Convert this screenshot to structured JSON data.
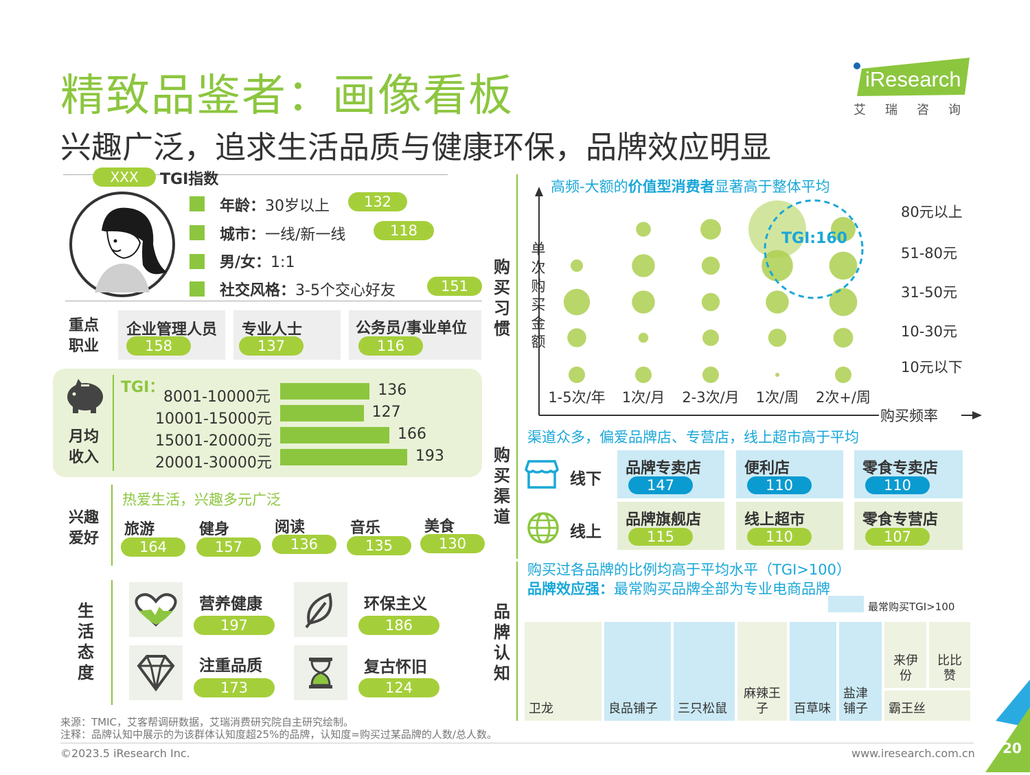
{
  "header": {
    "title": "精致品鉴者：画像看板",
    "subtitle": "兴趣广泛，追求生活品质与健康环保，品牌效应明显",
    "logo_brand": "iResearch",
    "logo_sub": "艾瑞咨询"
  },
  "profile": {
    "tag": "XXX",
    "tgi_label": "TGI指数",
    "items": [
      {
        "label": "年龄：",
        "value": "30岁以上",
        "tgi": "132"
      },
      {
        "label": "城市：",
        "value": "一线/新一线",
        "tgi": "118"
      },
      {
        "label": "男/女：",
        "value": "1:1",
        "tgi": ""
      },
      {
        "label": "社交风格：",
        "value": "3-5个交心好友",
        "tgi": "151"
      }
    ]
  },
  "occupation": {
    "label_l1": "重点",
    "label_l2": "职业",
    "items": [
      {
        "name": "企业管理人员",
        "tgi": "158"
      },
      {
        "name": "专业人士",
        "tgi": "137"
      },
      {
        "name": "公务员/事业单位",
        "tgi": "116"
      }
    ]
  },
  "income": {
    "label_l1": "月均",
    "label_l2": "收入",
    "tgi_label": "TGI：",
    "ranges": [
      "8001-10000元",
      "10001-15000元",
      "15001-20000元",
      "20001-30000元"
    ],
    "values": [
      136,
      127,
      166,
      193
    ]
  },
  "hobbies": {
    "label_l1": "兴趣",
    "label_l2": "爱好",
    "headline": "热爱生活，兴趣多元广泛",
    "items": [
      {
        "name": "旅游",
        "tgi": "164"
      },
      {
        "name": "健身",
        "tgi": "157"
      },
      {
        "name": "阅读",
        "tgi": "136"
      },
      {
        "name": "音乐",
        "tgi": "135"
      },
      {
        "name": "美食",
        "tgi": "130"
      }
    ]
  },
  "attitude": {
    "label": [
      "生",
      "活",
      "态",
      "度"
    ],
    "items": [
      {
        "name": "营养健康",
        "tgi": "197",
        "icon": "heart-pulse-icon"
      },
      {
        "name": "环保主义",
        "tgi": "186",
        "icon": "leaf-icon"
      },
      {
        "name": "注重品质",
        "tgi": "173",
        "icon": "diamond-icon"
      },
      {
        "name": "复古怀旧",
        "tgi": "124",
        "icon": "hourglass-icon"
      }
    ]
  },
  "purchase_habit": {
    "section_label": [
      "购",
      "买",
      "习",
      "惯"
    ],
    "headline_pre": "高频-大额的",
    "headline_bold": "价值型消费者",
    "headline_post": "显著高于整体平均",
    "y_axis_label": [
      "单",
      "次",
      "购",
      "买",
      "金",
      "额"
    ],
    "x_axis_label": "购买频率",
    "highlight": "TGI:160"
  },
  "chart_data": {
    "type": "scatter",
    "title": "高频-大额的价值型消费者显著高于整体平均",
    "xlabel": "购买频率",
    "ylabel": "单次购买金额",
    "x_categories": [
      "1-5次/年",
      "1次/月",
      "2-3次/月",
      "1次/周",
      "2次+/周"
    ],
    "y_categories": [
      "10元以下",
      "10-30元",
      "31-50元",
      "51-80元",
      "80元以上"
    ],
    "points": [
      {
        "x": 0,
        "y": 0,
        "size": 2
      },
      {
        "x": 1,
        "y": 0,
        "size": 2
      },
      {
        "x": 2,
        "y": 0,
        "size": 2
      },
      {
        "x": 3,
        "y": 0,
        "size": 0.5
      },
      {
        "x": 4,
        "y": 0,
        "size": 2
      },
      {
        "x": 0,
        "y": 1,
        "size": 2.3
      },
      {
        "x": 1,
        "y": 1,
        "size": 1.2
      },
      {
        "x": 2,
        "y": 1,
        "size": 2
      },
      {
        "x": 3,
        "y": 1,
        "size": 2.2
      },
      {
        "x": 4,
        "y": 1,
        "size": 2.4
      },
      {
        "x": 0,
        "y": 2,
        "size": 3.2
      },
      {
        "x": 1,
        "y": 2,
        "size": 2.8
      },
      {
        "x": 2,
        "y": 2,
        "size": 2.2
      },
      {
        "x": 3,
        "y": 2,
        "size": 2.8
      },
      {
        "x": 4,
        "y": 2,
        "size": 3.4
      },
      {
        "x": 0,
        "y": 3,
        "size": 1.5
      },
      {
        "x": 1,
        "y": 3,
        "size": 2.8
      },
      {
        "x": 2,
        "y": 3,
        "size": 2.2
      },
      {
        "x": 3,
        "y": 3,
        "size": 3.8
      },
      {
        "x": 4,
        "y": 3,
        "size": 3.4
      },
      {
        "x": 0,
        "y": 4,
        "size": 0
      },
      {
        "x": 1,
        "y": 4,
        "size": 1.8
      },
      {
        "x": 2,
        "y": 4,
        "size": 2.5
      },
      {
        "x": 3,
        "y": 4,
        "size": 7
      },
      {
        "x": 4,
        "y": 4,
        "size": 3.0
      }
    ],
    "annotation": "TGI:160"
  },
  "channel": {
    "section_label": [
      "购",
      "买",
      "渠",
      "道"
    ],
    "headline": "渠道众多，偏爱品牌店、专营店，线上超市高于平均",
    "offline_label": "线下",
    "online_label": "线上",
    "offline": [
      {
        "name": "品牌专卖店",
        "tgi": "147"
      },
      {
        "name": "便利店",
        "tgi": "110"
      },
      {
        "name": "零食专卖店",
        "tgi": "110"
      }
    ],
    "online": [
      {
        "name": "品牌旗舰店",
        "tgi": "115"
      },
      {
        "name": "线上超市",
        "tgi": "110"
      },
      {
        "name": "零食专营店",
        "tgi": "107"
      }
    ]
  },
  "brand": {
    "section_label": [
      "品",
      "牌",
      "认",
      "知"
    ],
    "headline1": "购买过各品牌的比例均高于平均水平（TGI>100）",
    "headline2_bold": "品牌效应强：",
    "headline2_rest": "最常购买品牌全部为专业电商品牌",
    "legend": "最常购买TGI>100",
    "tiles": [
      "卫龙",
      "良品铺子",
      "三只松鼠",
      "麻辣王子",
      "百草味",
      "盐津铺子",
      "来伊份",
      "比比赞",
      "霸王丝"
    ]
  },
  "footer": {
    "source": "来源：TMIC，艾客帮调研数据，艾瑞消费研究院自主研究绘制。",
    "note": "注释：品牌认知中展示的为该群体认知度超25%的品牌，认知度=购买过某品牌的人数/总人数。",
    "copyright": "©2023.5 iResearch Inc.",
    "url": "www.iresearch.com.cn",
    "page": "20"
  }
}
